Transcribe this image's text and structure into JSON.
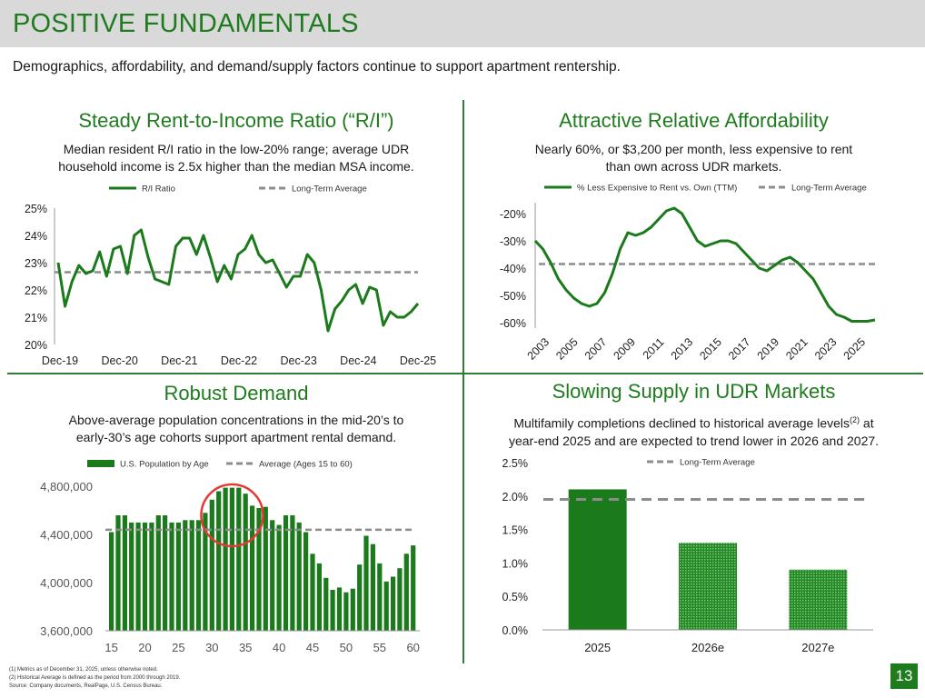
{
  "header": {
    "title": "POSITIVE FUNDAMENTALS"
  },
  "subtitle": "Demographics, affordability, and demand/supply factors continue to support apartment rentership.",
  "panels": {
    "ri": {
      "title": "Steady Rent-to-Income Ratio (“R/I”)",
      "desc1": "Median resident R/I ratio in the low-20% range; average UDR",
      "desc2": "household income is 2.5x higher than the median MSA income."
    },
    "afford": {
      "title": "Attractive Relative Affordability",
      "desc1": "Nearly 60%, or $3,200 per month, less expensive to rent",
      "desc2": "than own across UDR markets."
    },
    "demand": {
      "title": "Robust Demand",
      "desc1": "Above-average population concentrations in the mid-20’s to",
      "desc2": "early-30’s age cohorts support apartment rental demand."
    },
    "supply": {
      "title": "Slowing Supply in UDR Markets",
      "desc1_pre": "Multifamily completions declined to historical average levels",
      "desc1_sup": "(2)",
      "desc1_post": " at",
      "desc2": "year-end 2025 and are expected to trend lower in 2026 and 2027."
    }
  },
  "colors": {
    "brand_green": "#1e7b1e",
    "series_green": "#1b7a1b",
    "avg_gray": "#8c8c8c"
  },
  "chart_data": [
    {
      "type": "line",
      "legend": [
        "R/I Ratio",
        "Long-Term Average"
      ],
      "x_ticks": [
        "Dec-19",
        "Dec-20",
        "Dec-21",
        "Dec-22",
        "Dec-23",
        "Dec-24",
        "Dec-25"
      ],
      "y_ticks": [
        "25%",
        "24%",
        "23%",
        "22%",
        "21%",
        "20%"
      ],
      "ylim": [
        20,
        25
      ],
      "long_term_average": 22.65,
      "series": [
        {
          "name": "R/I Ratio",
          "values": [
            23.0,
            21.4,
            22.3,
            22.9,
            22.6,
            22.7,
            23.4,
            22.5,
            23.5,
            23.6,
            22.6,
            24.0,
            24.2,
            23.2,
            22.4,
            22.3,
            22.2,
            23.6,
            23.9,
            23.9,
            23.3,
            24.0,
            23.2,
            22.3,
            22.9,
            22.4,
            23.3,
            23.5,
            24.0,
            23.3,
            23.0,
            23.1,
            22.6,
            22.1,
            22.5,
            22.5,
            23.3,
            23.0,
            22.0,
            20.5,
            21.3,
            21.6,
            22.0,
            22.2,
            21.5,
            22.1,
            22.0,
            20.7,
            21.2,
            21.0,
            21.0,
            21.2,
            21.5
          ]
        }
      ]
    },
    {
      "type": "line",
      "legend": [
        "% Less Expensive to Rent vs. Own (TTM)",
        "Long-Term Average"
      ],
      "x_ticks": [
        "2003",
        "2005",
        "2007",
        "2009",
        "2011",
        "2013",
        "2015",
        "2017",
        "2019",
        "2021",
        "2023",
        "2025"
      ],
      "y_ticks": [
        "-20%",
        "-30%",
        "-40%",
        "-50%",
        "-60%"
      ],
      "ylim": [
        -62,
        -16
      ],
      "long_term_average": -38.5,
      "series": [
        {
          "name": "% Less Expensive to Rent vs. Own (TTM)",
          "values": [
            -30,
            -33,
            -38,
            -44,
            -48,
            -51,
            -53,
            -54,
            -53,
            -49,
            -42,
            -33,
            -27,
            -28,
            -27,
            -25,
            -22,
            -19,
            -18,
            -20,
            -25,
            -30,
            -32,
            -31,
            -30,
            -30,
            -31,
            -34,
            -37,
            -40,
            -41,
            -39,
            -37,
            -36,
            -38,
            -41,
            -44,
            -49,
            -54,
            -57,
            -58,
            -59.5,
            -59.5,
            -59.5,
            -59
          ]
        }
      ]
    },
    {
      "type": "bar",
      "legend": [
        "U.S. Population by Age",
        "Average (Ages 15 to 60)"
      ],
      "x_ticks": [
        "15",
        "20",
        "25",
        "30",
        "35",
        "40",
        "45",
        "50",
        "55",
        "60"
      ],
      "y_ticks": [
        "4,800,000",
        "4,400,000",
        "4,000,000",
        "3,600,000"
      ],
      "ylim": [
        3600000,
        4900000
      ],
      "average": 4440000,
      "ages": [
        15,
        16,
        17,
        18,
        19,
        20,
        21,
        22,
        23,
        24,
        25,
        26,
        27,
        28,
        29,
        30,
        31,
        32,
        33,
        34,
        35,
        36,
        37,
        38,
        39,
        40,
        41,
        42,
        43,
        44,
        45,
        46,
        47,
        48,
        49,
        50,
        51,
        52,
        53,
        54,
        55,
        56,
        57,
        58,
        59,
        60
      ],
      "values": [
        4420000,
        4560000,
        4560000,
        4500000,
        4500000,
        4500000,
        4500000,
        4560000,
        4560000,
        4500000,
        4500000,
        4520000,
        4520000,
        4520000,
        4580000,
        4690000,
        4760000,
        4790000,
        4790000,
        4790000,
        4740000,
        4640000,
        4620000,
        4630000,
        4520000,
        4480000,
        4560000,
        4560000,
        4500000,
        4420000,
        4240000,
        4160000,
        4040000,
        3940000,
        3960000,
        3920000,
        3950000,
        4150000,
        4390000,
        4320000,
        4160000,
        4010000,
        4050000,
        4120000,
        4240000,
        4310000
      ],
      "highlight": "ages 30-35"
    },
    {
      "type": "bar",
      "legend": [
        "Long-Term Average"
      ],
      "categories": [
        "2025",
        "2026e",
        "2027e"
      ],
      "values": [
        2.1,
        1.3,
        0.9
      ],
      "y_ticks": [
        "2.5%",
        "2.0%",
        "1.5%",
        "1.0%",
        "0.5%",
        "0.0%"
      ],
      "ylim": [
        0,
        2.5
      ],
      "long_term_average": 1.95
    }
  ],
  "footnotes": {
    "n1": "(1)     Metrics as of December 31, 2025, unless otherwise noted.",
    "n2": "(2)     Historical Average is defined as the period from 2000 through 2019.",
    "source": "Source: Company documents, RealPage, U.S. Census Bureau."
  },
  "page_number": "13"
}
